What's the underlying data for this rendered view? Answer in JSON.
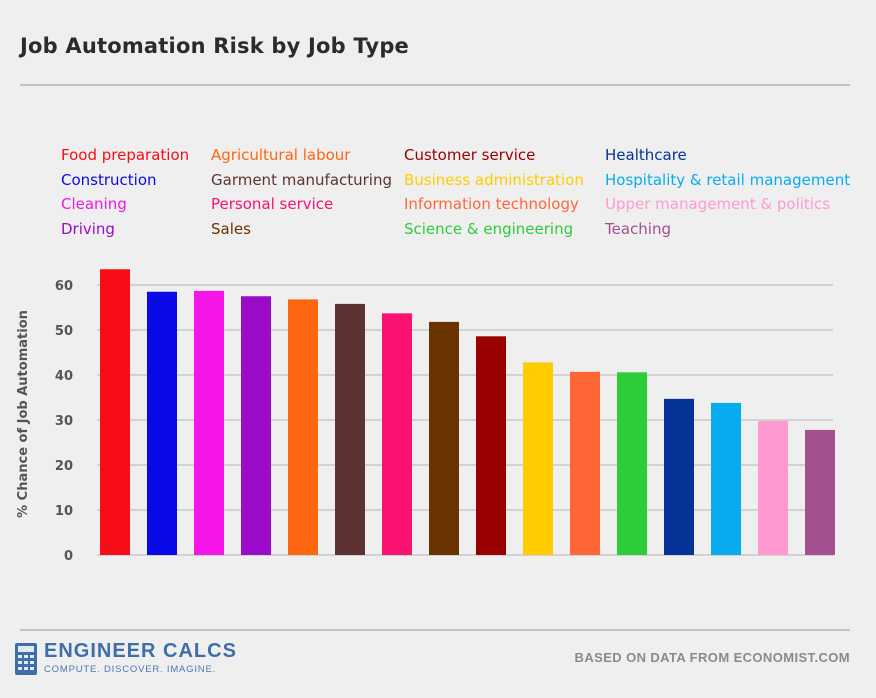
{
  "chart_data": {
    "type": "bar",
    "title": "Job Automation Risk by Job Type",
    "ylabel": "% Chance of Job Automation",
    "xlabel": "",
    "ylim": [
      0,
      64
    ],
    "yticks": [
      0,
      10,
      20,
      30,
      40,
      50,
      60
    ],
    "grid": true,
    "legend_position": "top",
    "categories": [
      "Food preparation",
      "Construction",
      "Cleaning",
      "Driving",
      "Agricultural labour",
      "Garment manufacturing",
      "Personal service",
      "Sales",
      "Customer service",
      "Business administration",
      "Information technology",
      "Science & engineering",
      "Healthcare",
      "Hospitality & retail management",
      "Upper management & politics",
      "Teaching"
    ],
    "values": [
      63.5,
      58.5,
      58.7,
      57.5,
      56.8,
      55.8,
      53.7,
      51.8,
      48.6,
      42.8,
      40.7,
      40.6,
      34.7,
      33.8,
      29.8,
      27.8
    ],
    "colors": [
      "#f80d17",
      "#0a0ae6",
      "#f515e6",
      "#9a0cc9",
      "#ff6610",
      "#5e3232",
      "#fb1170",
      "#6b3300",
      "#990000",
      "#ffcc00",
      "#ff6637",
      "#2fcc3a",
      "#063398",
      "#07acef",
      "#fe9ad0",
      "#a5508e"
    ]
  },
  "footer": {
    "logo_icon": "calculator-icon",
    "logo_name": "ENGINEER CALCS",
    "logo_tagline": "COMPUTE. DISCOVER. IMAGINE.",
    "source": "BASED ON DATA FROM ECONOMIST.COM"
  }
}
